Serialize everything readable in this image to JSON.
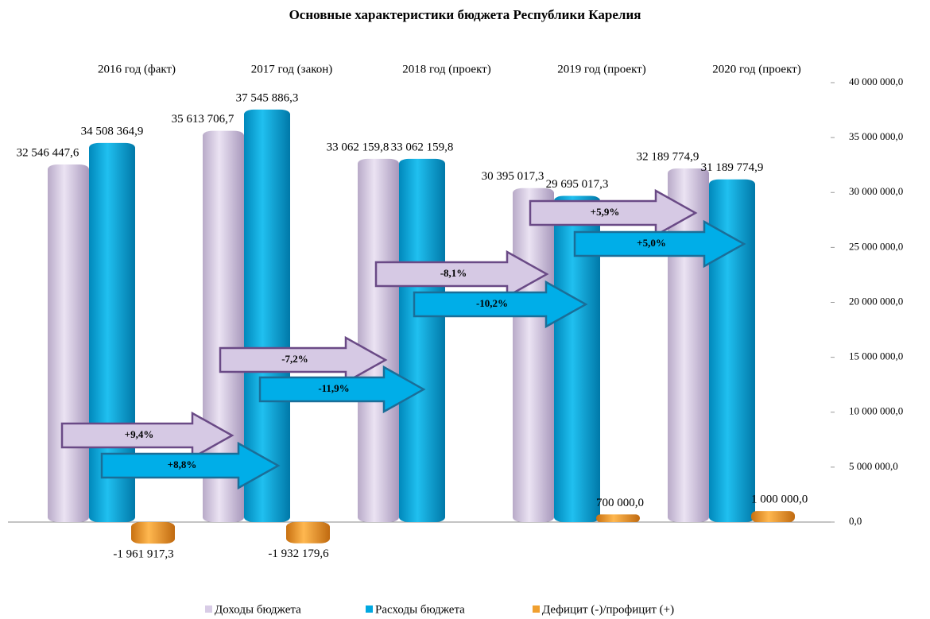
{
  "chart_data": {
    "type": "bar",
    "title": "Основные характеристики бюджета Республики Карелия",
    "categories": [
      "2016 год (факт)",
      "2017 год (закон)",
      "2018 год (проект)",
      "2019 год (проект)",
      "2020 год (проект)"
    ],
    "series": [
      {
        "name": "Доходы бюджета",
        "color": "#d8cce6",
        "values": [
          32546447.6,
          35613706.7,
          33062159.8,
          30395017.3,
          32189774.9
        ],
        "value_labels": [
          "32 546 447,6",
          "35 613 706,7",
          "33 062 159,8",
          "30 395 017,3",
          "32 189 774,9"
        ]
      },
      {
        "name": "Расходы бюджета",
        "color": "#00a8e0",
        "values": [
          34508364.9,
          37545886.3,
          33062159.8,
          29695017.3,
          31189774.9
        ],
        "value_labels": [
          "34 508 364,9",
          "37 545 886,3",
          "33 062 159,8",
          "29 695 017,3",
          "31 189 774,9"
        ]
      },
      {
        "name": "Дефицит (-)/профицит (+)",
        "color": "#f0a030",
        "values": [
          -1961917.3,
          -1932179.6,
          0,
          700000,
          1000000
        ],
        "value_labels": [
          "-1 961 917,3",
          "-1 932 179,6",
          null,
          "700 000,0",
          "1 000 000,0"
        ]
      }
    ],
    "annotations": [
      "+9,4%",
      "+8,8%",
      "-7,2%",
      "-11,9%",
      "-8,1%",
      "-10,2%",
      "+5,9%",
      "+5,0%"
    ],
    "ylim": [
      -2500000,
      40000000
    ],
    "yticks": [
      {
        "value": 0,
        "label": "0,0"
      },
      {
        "value": 5000000,
        "label": "5 000 000,0"
      },
      {
        "value": 10000000,
        "label": "10 000 000,0"
      },
      {
        "value": 15000000,
        "label": "15 000 000,0"
      },
      {
        "value": 20000000,
        "label": "20 000 000,0"
      },
      {
        "value": 25000000,
        "label": "25 000 000,0"
      },
      {
        "value": 30000000,
        "label": "30 000 000,0"
      },
      {
        "value": 35000000,
        "label": "35 000 000,0"
      },
      {
        "value": 40000000,
        "label": "40 000 000,0"
      }
    ],
    "legend": "bottom"
  }
}
